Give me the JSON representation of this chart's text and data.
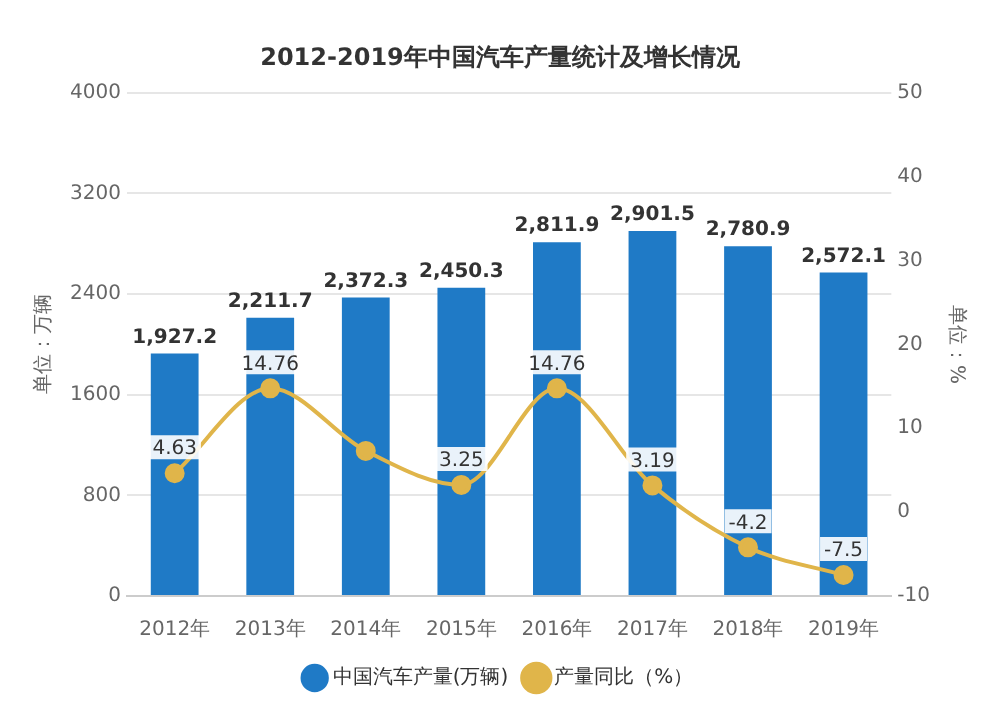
{
  "chart_data": {
    "type": "bar",
    "title": "2012-2019年中国汽车产量统计及增长情况",
    "ylabel": "单位：万辆",
    "y2label": "单位：%",
    "categories": [
      "2012年",
      "2013年",
      "2014年",
      "2015年",
      "2016年",
      "2017年",
      "2018年",
      "2019年"
    ],
    "series": [
      {
        "name": "中国汽车产量(万辆)",
        "color": "#1f7ac6",
        "values": [
          1927.2,
          2211.7,
          2372.3,
          2450.3,
          2811.9,
          2901.5,
          2780.9,
          2572.1
        ],
        "value_labels": [
          "1,927.2",
          "2,211.7",
          "2,372.3",
          "2,450.3",
          "2,811.9",
          "2,901.5",
          "2,780.9",
          "2,572.1"
        ]
      },
      {
        "name": "产量同比（%）",
        "type": "line",
        "axis": "y2",
        "color": "#e0b54a",
        "values": [
          4.63,
          14.76,
          7.3,
          3.25,
          14.76,
          3.19,
          -4.2,
          -7.5
        ],
        "value_labels": [
          "4.63",
          "14.76",
          null,
          "3.25",
          "14.76",
          "3.19",
          "-4.2",
          "-7.5"
        ]
      }
    ],
    "ylim": [
      0,
      4000
    ],
    "yticks": [
      0,
      800,
      1600,
      2400,
      3200,
      4000
    ],
    "y2lim": [
      -10,
      50
    ],
    "y2ticks": [
      -10,
      0,
      10,
      20,
      30,
      40,
      50
    ],
    "grid": "y",
    "legend": "bottom",
    "marker": "circle",
    "line_style": "solid"
  }
}
